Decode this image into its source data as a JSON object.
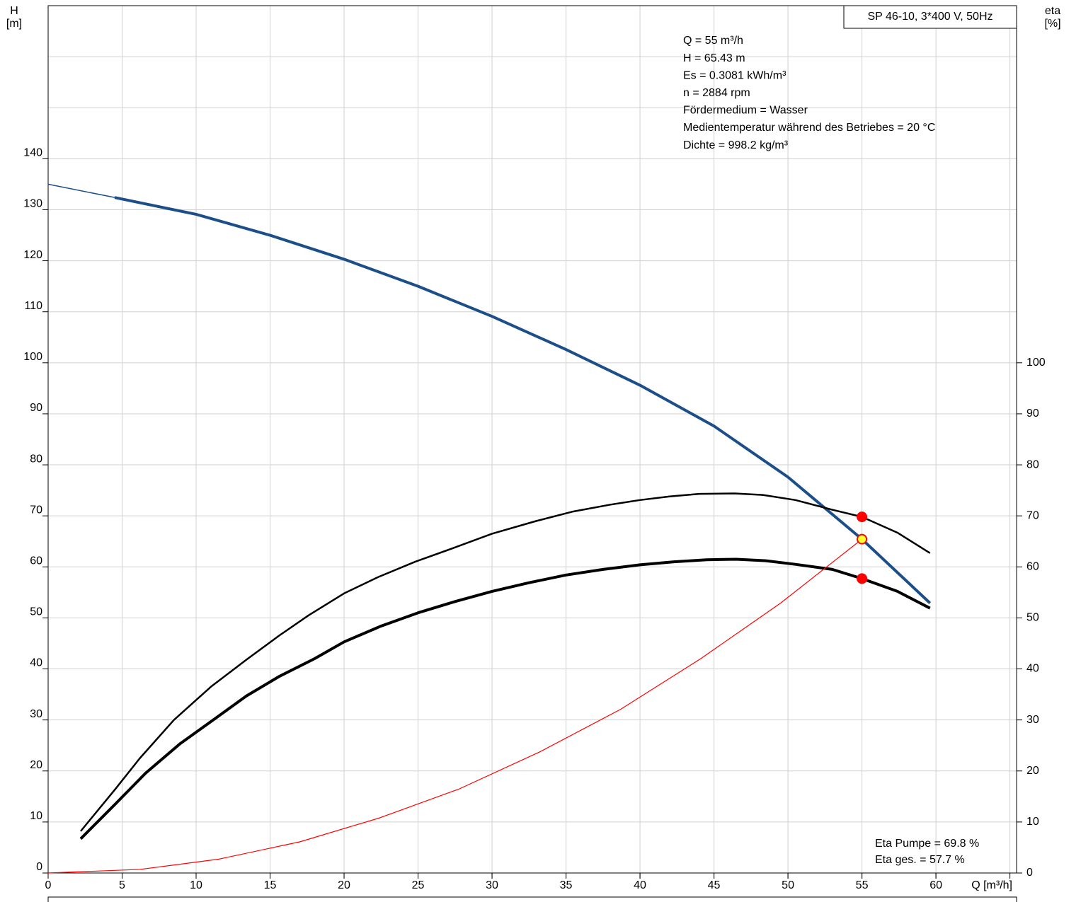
{
  "chart_data": {
    "type": "line",
    "title": "SP 46-10, 3*400 V, 50Hz",
    "ylabel": [
      "H",
      "[m]"
    ],
    "y2label": [
      "eta",
      "[%]"
    ],
    "xlabel": "Q [m³/h]",
    "annotations": [
      "Q = 55 m³/h",
      "H = 65.43 m",
      "Es = 0.3081 kWh/m³",
      "n = 2884 rpm",
      "Fördermedium = Wasser",
      "Medientemperatur während des Betriebes = 20 °C",
      "Dichte = 998.2 kg/m³"
    ],
    "footer_annotations": [
      "Eta Pumpe = 69.8 %",
      "Eta ges. = 57.7 %"
    ],
    "xlim": [
      0,
      65.45
    ],
    "xticks": [
      0,
      5,
      10,
      15,
      20,
      25,
      30,
      35,
      40,
      45,
      50,
      55,
      60
    ],
    "xgrid": [
      5,
      10,
      15,
      20,
      25,
      30,
      35,
      40,
      45,
      50,
      55,
      60,
      65
    ],
    "ylim": [
      0,
      170
    ],
    "yticks": [
      0,
      10,
      20,
      30,
      40,
      50,
      60,
      70,
      80,
      90,
      100,
      110,
      120,
      130,
      140
    ],
    "ygrid": [
      10,
      20,
      30,
      40,
      50,
      60,
      70,
      80,
      90,
      100,
      110,
      120,
      130,
      140,
      150,
      160
    ],
    "y2lim": [
      0,
      170
    ],
    "y2ticks": [
      0,
      10,
      20,
      30,
      40,
      50,
      60,
      70,
      80,
      90,
      100
    ],
    "grid": true,
    "series": [
      {
        "axis": "y",
        "color": "#1c4f89",
        "width": 1.5,
        "x": [
          0,
          4.5
        ],
        "values": [
          135,
          132.4
        ]
      },
      {
        "axis": "y",
        "color": "#1c4f89",
        "width": 4,
        "x": [
          4.5,
          10,
          15,
          20,
          25,
          30,
          35,
          40,
          45,
          50,
          55,
          59.6
        ],
        "values": [
          132.4,
          129.1,
          125,
          120.3,
          115,
          109.1,
          102.6,
          95.6,
          87.6,
          77.6,
          65.43,
          52.9
        ]
      },
      {
        "axis": "y2",
        "color": "#000000",
        "width": 2.5,
        "x": [
          2.2,
          4.5,
          6.2,
          8.5,
          11,
          13.4,
          15.6,
          17.6,
          20,
          22.3,
          24.8,
          27.2,
          30,
          33,
          35.4,
          38,
          40,
          42,
          44,
          46.4,
          48.3,
          50.5,
          53,
          55,
          57.4,
          59.6
        ],
        "values": [
          8.2,
          16.3,
          22.5,
          30,
          36.5,
          41.8,
          46.5,
          50.5,
          54.8,
          58,
          61,
          63.5,
          66.5,
          69,
          70.8,
          72.2,
          73.1,
          73.8,
          74.3,
          74.4,
          74.1,
          73.1,
          71.2,
          69.8,
          66.7,
          62.7
        ]
      },
      {
        "axis": "y2",
        "color": "#000000",
        "width": 4,
        "x": [
          2.2,
          4.5,
          6.6,
          8.9,
          11.3,
          13.4,
          15.6,
          18,
          20,
          22.5,
          25,
          27.5,
          30,
          32.5,
          35,
          37.5,
          40,
          42.3,
          44.5,
          46.5,
          48.5,
          50.5,
          53,
          55,
          57.4,
          59.6
        ],
        "values": [
          6.7,
          13.4,
          19.6,
          25.3,
          30.3,
          34.7,
          38.5,
          42,
          45.3,
          48.4,
          51,
          53.2,
          55.2,
          56.9,
          58.4,
          59.5,
          60.4,
          61,
          61.4,
          61.5,
          61.2,
          60.5,
          59.5,
          57.7,
          55.2,
          51.9
        ]
      },
      {
        "axis": "y",
        "color": "#ff0000",
        "width": 1.2,
        "x": [
          0,
          6.2,
          11.5,
          17,
          22.4,
          27.8,
          33.2,
          38.7,
          44.1,
          49.5,
          55
        ],
        "values": [
          0,
          0.7,
          2.7,
          6.1,
          10.8,
          16.5,
          23.7,
          32.1,
          42,
          52.9,
          65.43
        ]
      }
    ],
    "points": [
      {
        "axis": "y2",
        "x": 55,
        "y": 69.8,
        "fill": "#ff0000",
        "stroke": "#ff0000"
      },
      {
        "axis": "y",
        "x": 55,
        "y": 65.43,
        "fill": "#ffff33",
        "stroke": "#ff0000"
      },
      {
        "axis": "y2",
        "x": 55,
        "y": 57.7,
        "fill": "#ff0000",
        "stroke": "#ff0000"
      }
    ]
  }
}
